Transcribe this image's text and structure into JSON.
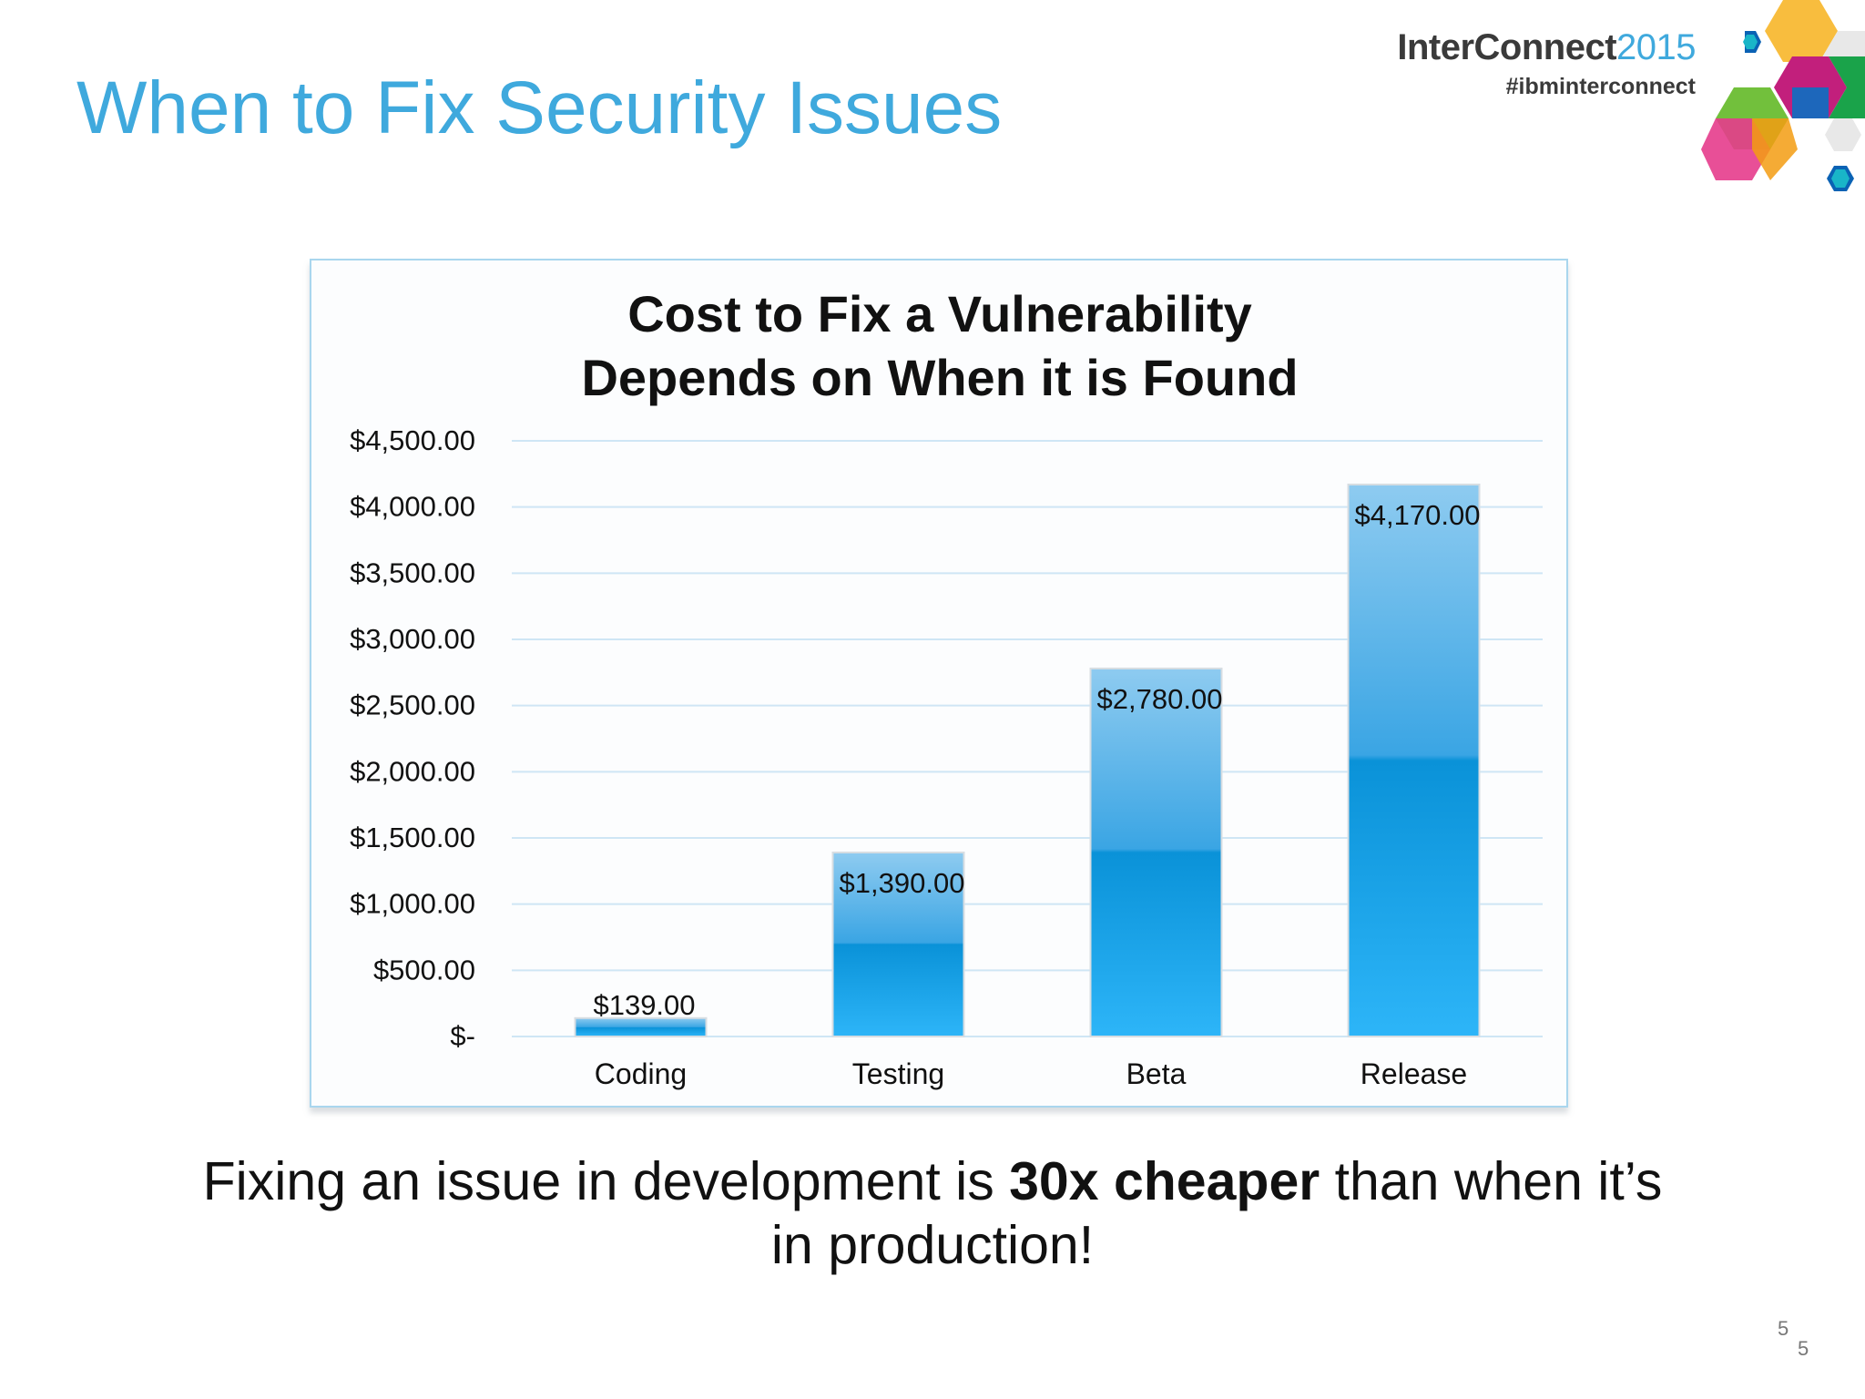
{
  "slide": {
    "title": "When to Fix Security Issues",
    "brand_name_bold": "InterConnect",
    "brand_year": "2015",
    "brand_hashtag": "#ibminterconnect",
    "takeaway_part1": "Fixing an issue in development is ",
    "takeaway_bold": "30x cheaper",
    "takeaway_part2": " than when it’s",
    "takeaway_line2": "in production!",
    "page_number_a": "5",
    "page_number_b": "5"
  },
  "colors": {
    "title": "#3fa9dd",
    "bar_light": "#8ecbf0",
    "bar_dark": "#0a92d8",
    "bar_bottom": "#2db5f8",
    "gridline": "#cfe6f5"
  },
  "chart_data": {
    "type": "bar",
    "title_line1": "Cost to Fix a Vulnerability",
    "title_line2": "Depends on When it is Found",
    "categories": [
      "Coding",
      "Testing",
      "Beta",
      "Release"
    ],
    "values": [
      139,
      1390,
      2780,
      4170
    ],
    "data_labels": [
      "$139.00",
      "$1,390.00",
      "$2,780.00",
      "$4,170.00"
    ],
    "y_ticks": [
      {
        "value": 0,
        "label": "$-"
      },
      {
        "value": 500,
        "label": "$500.00"
      },
      {
        "value": 1000,
        "label": "$1,000.00"
      },
      {
        "value": 1500,
        "label": "$1,500.00"
      },
      {
        "value": 2000,
        "label": "$2,000.00"
      },
      {
        "value": 2500,
        "label": "$2,500.00"
      },
      {
        "value": 3000,
        "label": "$3,000.00"
      },
      {
        "value": 3500,
        "label": "$3,500.00"
      },
      {
        "value": 4000,
        "label": "$4,000.00"
      },
      {
        "value": 4500,
        "label": "$4,500.00"
      }
    ],
    "ylim": [
      0,
      4500
    ],
    "grid": true,
    "legend": "none"
  }
}
